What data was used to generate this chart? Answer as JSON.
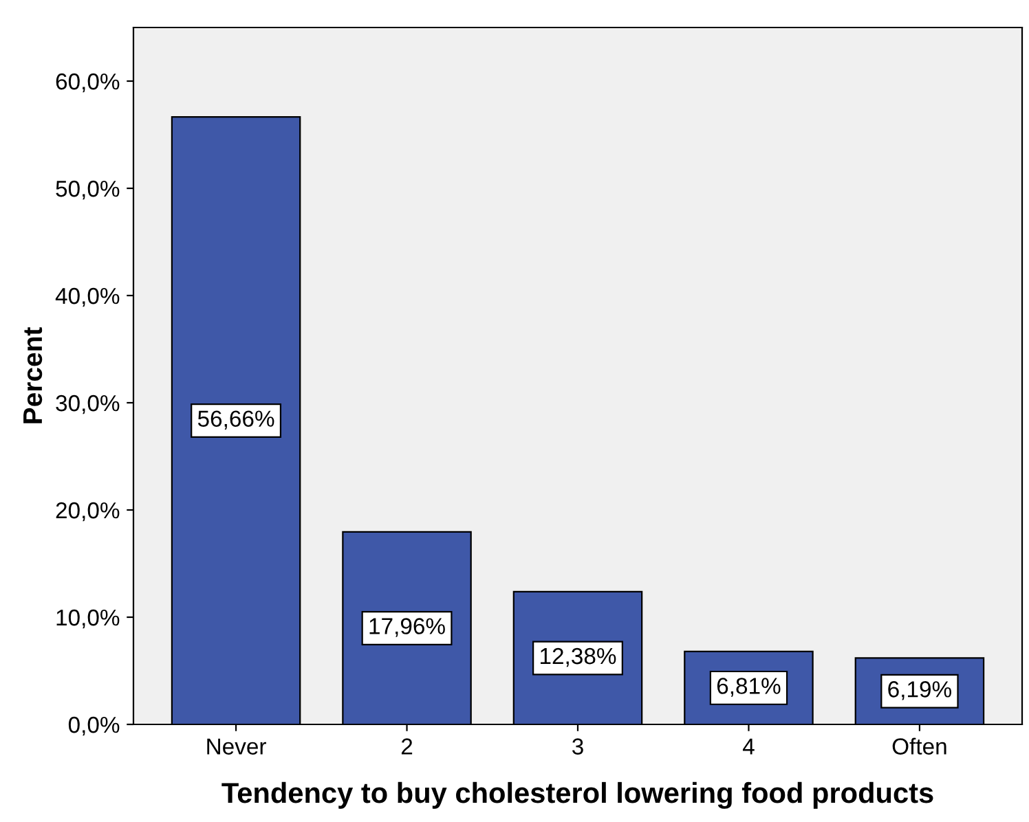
{
  "chart_data": {
    "type": "bar",
    "xlabel": "Tendency to buy cholesterol lowering food products",
    "ylabel": "Percent",
    "categories": [
      "Never",
      "2",
      "3",
      "4",
      "Often"
    ],
    "values": [
      56.66,
      17.96,
      12.38,
      6.81,
      6.19
    ],
    "value_labels": [
      "56,66%",
      "17,96%",
      "12,38%",
      "6,81%",
      "6,19%"
    ],
    "color": "#3f58a8",
    "ylim": [
      0,
      65
    ],
    "yticks": [
      {
        "value": 0,
        "label": "0,0%"
      },
      {
        "value": 10,
        "label": "10,0%"
      },
      {
        "value": 20,
        "label": "20,0%"
      },
      {
        "value": 30,
        "label": "30,0%"
      },
      {
        "value": 40,
        "label": "40,0%"
      },
      {
        "value": 50,
        "label": "50,0%"
      },
      {
        "value": 60,
        "label": "60,0%"
      }
    ],
    "grid": false,
    "legend": false
  }
}
